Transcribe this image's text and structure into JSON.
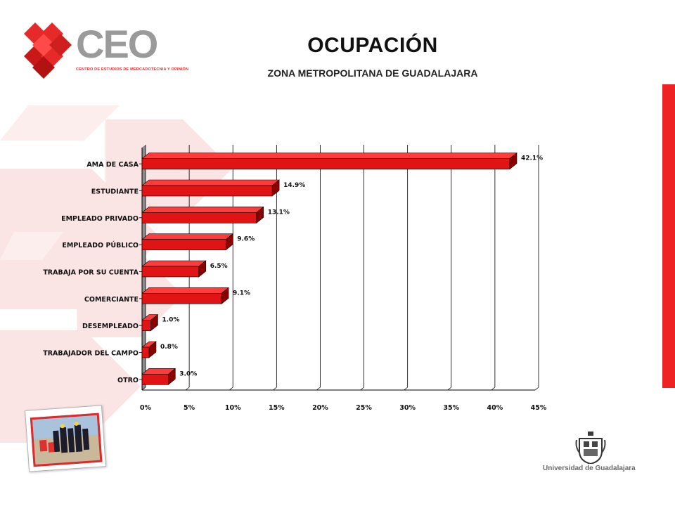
{
  "header": {
    "logo_text": "CEO",
    "logo_subtitle": "CENTRO DE ESTUDIOS DE MERCADOTECNIA Y OPINIÓN",
    "title": "OCUPACIÓN",
    "subtitle": "ZONA METROPOLITANA DE GUADALAJARA"
  },
  "footer": {
    "university": "Universidad de Guadalajara"
  },
  "colors": {
    "bar_front": "#e01414",
    "bar_top": "#ff3b3b",
    "bar_side": "#8a0000",
    "accent_red": "#ee2222",
    "watermark": "#fbe3e3"
  },
  "chart_data": {
    "type": "bar",
    "orientation": "horizontal",
    "categories": [
      "AMA DE CASA",
      "ESTUDIANTE",
      "EMPLEADO PRIVADO",
      "EMPLEADO PÚBLICO",
      "TRABAJA POR SU CUENTA",
      "COMERCIANTE",
      "DESEMPLEADO",
      "TRABAJADOR DEL CAMPO",
      "OTRO"
    ],
    "values": [
      42.1,
      14.9,
      13.1,
      9.6,
      6.5,
      9.1,
      1.0,
      0.8,
      3.0
    ],
    "value_labels": [
      "42.1%",
      "14.9%",
      "13.1%",
      "9.6%",
      "6.5%",
      "9.1%",
      "1.0%",
      "0.8%",
      "3.0%"
    ],
    "xlim": [
      0,
      45
    ],
    "xticks": [
      0,
      5,
      10,
      15,
      20,
      25,
      30,
      35,
      40,
      45
    ],
    "xtick_labels": [
      "0%",
      "5%",
      "10%",
      "15%",
      "20%",
      "25%",
      "30%",
      "35%",
      "40%",
      "45%"
    ],
    "grid": true,
    "xlabel": "",
    "ylabel": ""
  }
}
